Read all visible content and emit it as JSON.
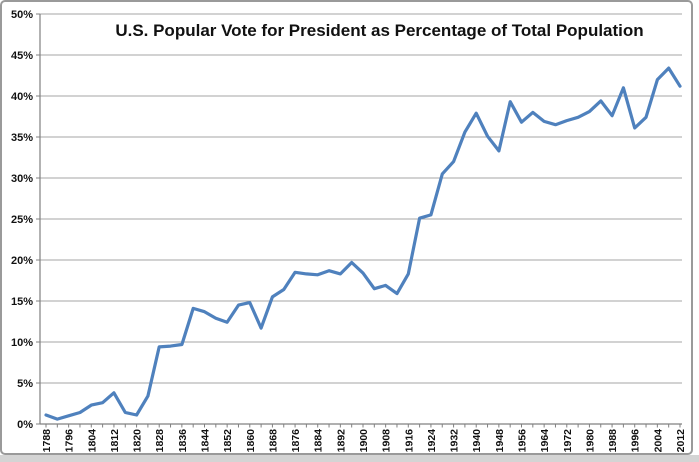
{
  "window": {
    "frame_border_color": "#9a9a9a",
    "bottom_strip_color": "#d4d4d4",
    "background_color": "#ffffff"
  },
  "chart_data": {
    "type": "line",
    "title": "U.S. Popular Vote for President as Percentage of Total Population",
    "x": [
      1788,
      1792,
      1796,
      1800,
      1804,
      1808,
      1812,
      1816,
      1820,
      1824,
      1828,
      1832,
      1836,
      1840,
      1844,
      1848,
      1852,
      1856,
      1860,
      1864,
      1868,
      1872,
      1876,
      1880,
      1884,
      1888,
      1892,
      1896,
      1900,
      1904,
      1908,
      1912,
      1916,
      1920,
      1924,
      1928,
      1932,
      1936,
      1940,
      1944,
      1948,
      1952,
      1956,
      1960,
      1964,
      1968,
      1972,
      1976,
      1980,
      1984,
      1988,
      1992,
      1996,
      2000,
      2004,
      2008,
      2012
    ],
    "values": [
      1.1,
      0.6,
      1.0,
      1.4,
      2.3,
      2.6,
      3.8,
      1.4,
      1.1,
      3.4,
      9.4,
      9.5,
      9.7,
      14.1,
      13.7,
      12.9,
      12.4,
      14.5,
      14.8,
      11.7,
      15.5,
      16.4,
      18.5,
      18.3,
      18.2,
      18.7,
      18.3,
      19.7,
      18.4,
      16.5,
      16.9,
      15.9,
      18.3,
      25.1,
      25.5,
      30.5,
      32.0,
      35.6,
      37.9,
      35.1,
      33.3,
      39.3,
      36.8,
      38.0,
      36.9,
      36.5,
      37.0,
      37.4,
      38.1,
      39.4,
      37.6,
      41.0,
      36.1,
      37.4,
      42.0,
      43.4,
      41.2
    ],
    "xlabel": "",
    "ylabel": "",
    "ylim": [
      0,
      50
    ],
    "y_tick_step": 5,
    "y_tick_labels": [
      "0%",
      "5%",
      "10%",
      "15%",
      "20%",
      "25%",
      "30%",
      "35%",
      "40%",
      "45%",
      "50%"
    ],
    "x_label_interval_years": 8,
    "x_tick_labels": [
      "1788",
      "1796",
      "1804",
      "1812",
      "1820",
      "1828",
      "1836",
      "1844",
      "1852",
      "1860",
      "1868",
      "1876",
      "1884",
      "1892",
      "1900",
      "1908",
      "1916",
      "1924",
      "1932",
      "1940",
      "1948",
      "1956",
      "1964",
      "1972",
      "1980",
      "1988",
      "1996",
      "2004",
      "2012"
    ],
    "grid": true,
    "legend": "none",
    "line_color": "#4F81BD",
    "gridline_color": "#A6A6A6",
    "axis_color": "#808080",
    "text_color": "#111111"
  }
}
